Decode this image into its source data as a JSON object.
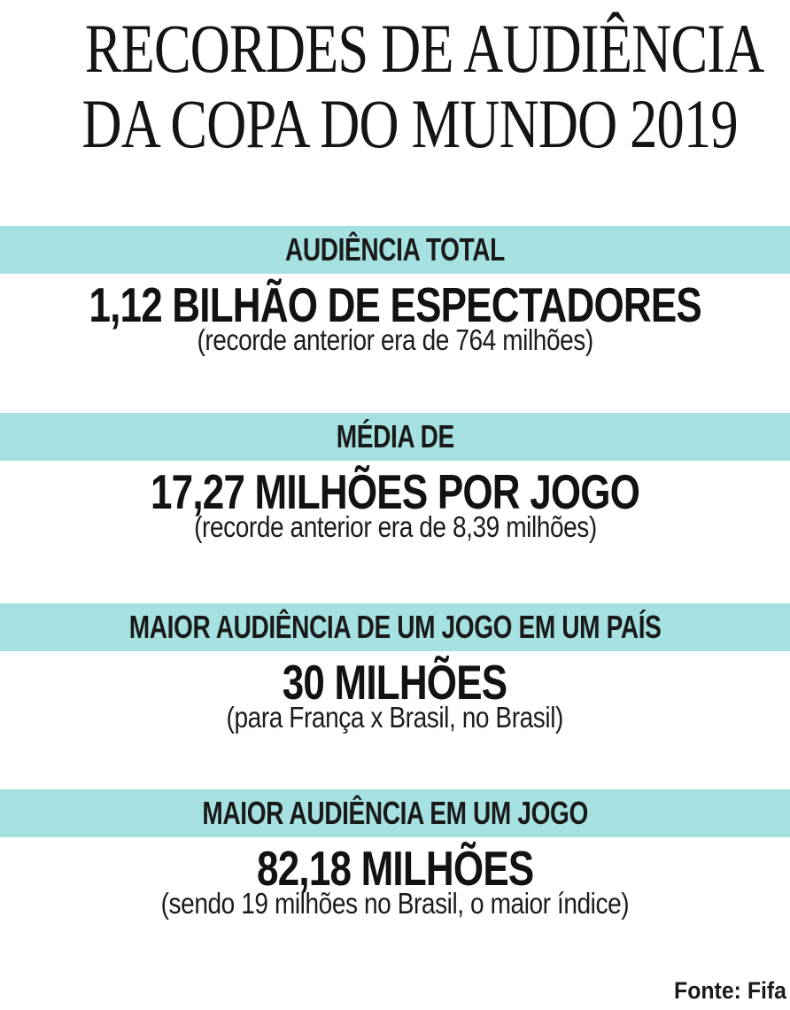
{
  "title": {
    "line1": "RECORDES DE AUDIÊNCIA",
    "line2": "DA COPA DO MUNDO 2019"
  },
  "sections": [
    {
      "header": "AUDIÊNCIA TOTAL",
      "value": "1,12 BILHÃO DE ESPECTADORES",
      "note": "(recorde anterior era de 764 milhões)"
    },
    {
      "header": "MÉDIA DE",
      "value": "17,27 MILHÕES POR JOGO",
      "note": "(recorde anterior era de 8,39 milhões)"
    },
    {
      "header": "MAIOR AUDIÊNCIA DE UM JOGO EM UM PAÍS",
      "value": "30 MILHÕES",
      "note": "(para França x Brasil, no Brasil)"
    },
    {
      "header": "MAIOR AUDIÊNCIA EM UM JOGO",
      "value": "82,18 MILHÕES",
      "note": "(sendo 19 milhões no Brasil, o maior índice)"
    }
  ],
  "source": {
    "label": "Fonte: Fifa"
  },
  "colors": {
    "bar_background": "#a6e1e1",
    "text": "#121212",
    "background": "#ffffff"
  },
  "chart_data": {
    "type": "table",
    "title": "RECORDES DE AUDIÊNCIA DA COPA DO MUNDO 2019",
    "source": "Fifa",
    "records": [
      {
        "category": "Audiência total",
        "value_text": "1,12 bilhão de espectadores",
        "value_millions": 1120,
        "previous_record_millions": 764,
        "detail": "recorde anterior era de 764 milhões"
      },
      {
        "category": "Média por jogo",
        "value_text": "17,27 milhões por jogo",
        "value_millions": 17.27,
        "previous_record_millions": 8.39,
        "detail": "recorde anterior era de 8,39 milhões"
      },
      {
        "category": "Maior audiência de um jogo em um país",
        "value_text": "30 milhões",
        "value_millions": 30,
        "detail": "para França x Brasil, no Brasil"
      },
      {
        "category": "Maior audiência em um jogo",
        "value_text": "82,18 milhões",
        "value_millions": 82.18,
        "detail": "sendo 19 milhões no Brasil, o maior índice"
      }
    ]
  }
}
